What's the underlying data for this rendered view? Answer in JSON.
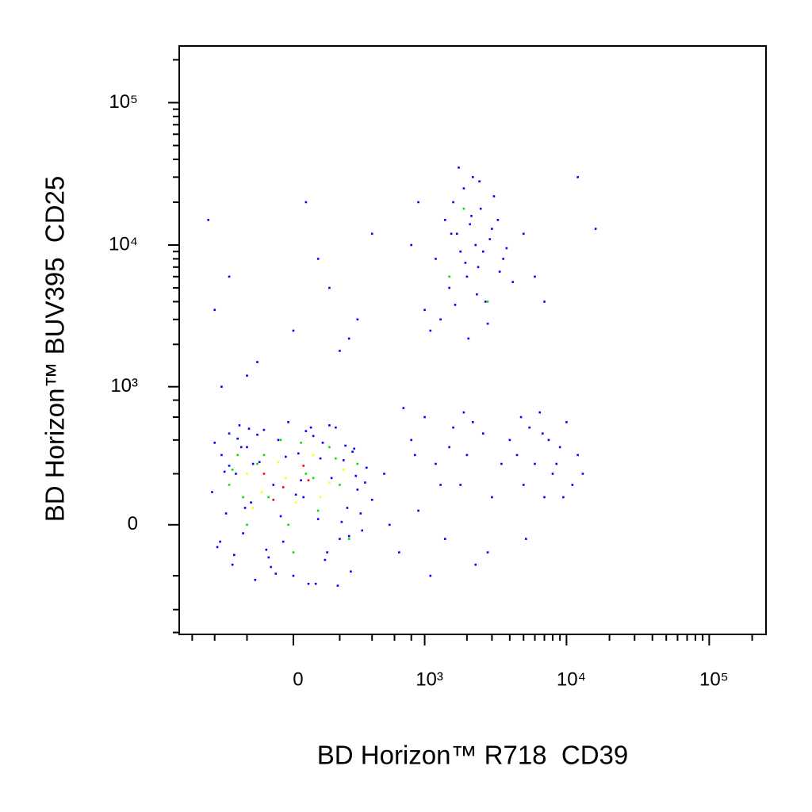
{
  "chart_data": {
    "type": "scatter",
    "xlabel": "BD Horizon™ R718  CD39",
    "ylabel": "BD Horizon™ BUV395  CD25",
    "xlim": [
      -750,
      250000
    ],
    "ylim": [
      -620,
      250000
    ],
    "xticks": [
      {
        "value": 0,
        "label": "0"
      },
      {
        "value": 1000,
        "label": "10³"
      },
      {
        "value": 10000,
        "label": "10⁴"
      },
      {
        "value": 100000,
        "label": "10⁵"
      }
    ],
    "yticks": [
      {
        "value": 0,
        "label": "0"
      },
      {
        "value": 1000,
        "label": "10³"
      },
      {
        "value": 10000,
        "label": "10⁴"
      },
      {
        "value": 100000,
        "label": "10⁵"
      }
    ],
    "xminor_ticks": [
      -600,
      -400,
      -200,
      200,
      400,
      600,
      800,
      2000,
      3000,
      4000,
      5000,
      6000,
      7000,
      8000,
      9000,
      20000,
      30000,
      40000,
      50000,
      60000,
      70000,
      80000,
      90000,
      200000
    ],
    "yminor_ticks": [
      -600,
      -400,
      -200,
      200,
      400,
      600,
      800,
      2000,
      3000,
      4000,
      5000,
      6000,
      7000,
      8000,
      9000,
      20000,
      30000,
      40000,
      50000,
      60000,
      70000,
      80000,
      90000,
      200000
    ],
    "series": [
      {
        "color": "#0000ff",
        "x": [
          -420,
          -380,
          -350,
          -320,
          -300,
          -280,
          -260,
          -240,
          -220,
          -200,
          -180,
          -160,
          -140,
          -120,
          -100,
          -80,
          -60,
          -40,
          -20,
          0,
          20,
          40,
          60,
          80,
          100,
          120,
          140,
          160,
          180,
          200,
          220,
          240,
          260,
          280,
          300,
          330,
          360,
          400,
          -400,
          -330,
          -270,
          -210,
          -150,
          -90,
          -30,
          30,
          90,
          150,
          210,
          270,
          350,
          -360,
          -250,
          -170,
          -70,
          50,
          130,
          230,
          320,
          -300,
          -190,
          -110,
          10,
          110,
          190,
          290,
          -230,
          -50,
          70,
          250,
          500,
          650,
          800,
          900,
          1000,
          1200,
          1400,
          1600,
          1800,
          2000,
          2300,
          2600,
          3000,
          700,
          1100,
          1500,
          2200,
          550,
          850,
          1300,
          1900,
          2800,
          3500,
          4000,
          4500,
          5000,
          5500,
          6000,
          6500,
          7000,
          7500,
          8000,
          9000,
          10000,
          11000,
          12000,
          5200,
          6800,
          8500,
          9500,
          13000,
          4800,
          1200,
          1400,
          1500,
          1600,
          1700,
          1800,
          1900,
          2000,
          2100,
          2200,
          2300,
          2400,
          2500,
          2700,
          2900,
          3100,
          3400,
          3800,
          4200,
          1300,
          1550,
          1750,
          1950,
          2150,
          2350,
          2600,
          3000,
          3600,
          900,
          1000,
          800,
          5000,
          6000,
          7000,
          1100,
          1650,
          2050,
          2450,
          2800,
          3300,
          12000,
          16000,
          -450,
          -400,
          -300,
          -150,
          0,
          100,
          200,
          300,
          400,
          -200,
          50,
          250,
          -350,
          150
        ],
        "y": [
          120,
          -80,
          300,
          40,
          450,
          -150,
          200,
          520,
          -30,
          350,
          80,
          -220,
          260,
          480,
          -120,
          150,
          400,
          -60,
          550,
          -200,
          310,
          100,
          -240,
          430,
          20,
          380,
          -100,
          180,
          500,
          -50,
          270,
          60,
          -180,
          340,
          130,
          -20,
          230,
          90,
          380,
          210,
          -110,
          60,
          440,
          -160,
          290,
          170,
          -240,
          520,
          10,
          320,
          160,
          -60,
          410,
          250,
          -190,
          470,
          -130,
          360,
          40,
          240,
          490,
          -90,
          110,
          280,
          -250,
          190,
          350,
          30,
          500,
          -40,
          200,
          -100,
          400,
          50,
          600,
          250,
          -50,
          500,
          150,
          300,
          -150,
          450,
          100,
          700,
          -200,
          350,
          550,
          0,
          300,
          150,
          650,
          -100,
          250,
          400,
          300,
          150,
          500,
          250,
          650,
          100,
          400,
          200,
          350,
          550,
          150,
          300,
          -50,
          450,
          250,
          100,
          200,
          600,
          8000,
          15000,
          5000,
          20000,
          12000,
          9000,
          25000,
          6000,
          14000,
          30000,
          10000,
          7000,
          18000,
          4000,
          11000,
          22000,
          6500,
          9500,
          5500,
          3000,
          12000,
          35000,
          7500,
          16000,
          4500,
          9000,
          13000,
          8000,
          20000,
          3500,
          10000,
          12000,
          6000,
          4000,
          2500,
          3800,
          2200,
          28000,
          2800,
          15000,
          30000,
          13000,
          15000,
          3500,
          6000,
          1500,
          2500,
          8000,
          1800,
          3000,
          12000,
          1200,
          20000,
          2200,
          1000,
          5000
        ]
      },
      {
        "color": "#00e000",
        "x": [
          -300,
          -250,
          -200,
          -150,
          -100,
          -50,
          0,
          50,
          100,
          150,
          200,
          250,
          300,
          -220,
          -120,
          -20,
          80,
          180,
          -280,
          30,
          1900,
          2800,
          1500
        ],
        "y": [
          150,
          300,
          0,
          250,
          100,
          400,
          -100,
          200,
          50,
          350,
          150,
          -50,
          250,
          100,
          300,
          0,
          180,
          280,
          220,
          380,
          18000,
          4000,
          6000
        ]
      },
      {
        "color": "#ffff00",
        "x": [
          -200,
          -130,
          -60,
          10,
          80,
          150,
          220,
          -170,
          -30,
          110
        ],
        "y": [
          200,
          120,
          260,
          80,
          300,
          160,
          220,
          60,
          180,
          100
        ]
      },
      {
        "color": "#ff0000",
        "x": [
          -120,
          -40,
          40,
          -80,
          60
        ],
        "y": [
          200,
          140,
          240,
          90,
          170
        ]
      }
    ]
  }
}
